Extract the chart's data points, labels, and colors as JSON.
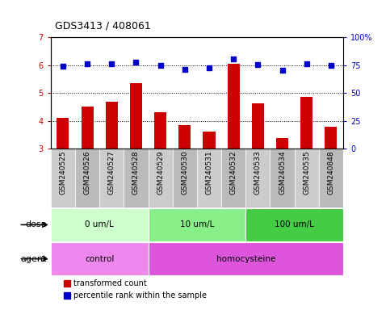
{
  "title": "GDS3413 / 408061",
  "samples": [
    "GSM240525",
    "GSM240526",
    "GSM240527",
    "GSM240528",
    "GSM240529",
    "GSM240530",
    "GSM240531",
    "GSM240532",
    "GSM240533",
    "GSM240534",
    "GSM240535",
    "GSM240848"
  ],
  "transformed_count": [
    4.12,
    4.52,
    4.7,
    5.35,
    4.32,
    3.85,
    3.62,
    6.05,
    4.62,
    3.38,
    4.87,
    3.78
  ],
  "percentile_rank": [
    74.0,
    76.5,
    76.5,
    77.5,
    75.0,
    71.0,
    72.5,
    80.5,
    75.5,
    70.5,
    76.5,
    74.5
  ],
  "ylim_left": [
    3,
    7
  ],
  "ylim_right": [
    0,
    100
  ],
  "yticks_left": [
    3,
    4,
    5,
    6,
    7
  ],
  "yticks_right": [
    0,
    25,
    50,
    75,
    100
  ],
  "ytick_labels_right": [
    "0",
    "25",
    "50",
    "75",
    "100%"
  ],
  "bar_color": "#cc0000",
  "dot_color": "#0000cc",
  "dose_groups": [
    {
      "label": "0 um/L",
      "start": 0,
      "end": 4,
      "color": "#ccffcc"
    },
    {
      "label": "10 um/L",
      "start": 4,
      "end": 8,
      "color": "#88ee88"
    },
    {
      "label": "100 um/L",
      "start": 8,
      "end": 12,
      "color": "#44cc44"
    }
  ],
  "agent_groups": [
    {
      "label": "control",
      "start": 0,
      "end": 4,
      "color": "#ee88ee"
    },
    {
      "label": "homocysteine",
      "start": 4,
      "end": 12,
      "color": "#dd55dd"
    }
  ],
  "dose_label": "dose",
  "agent_label": "agent",
  "legend_bar_label": "transformed count",
  "legend_dot_label": "percentile rank within the sample",
  "bg_color": "#ffffff",
  "plot_bg": "#ffffff",
  "sample_col_colors": [
    "#cccccc",
    "#bbbbbb",
    "#cccccc",
    "#bbbbbb",
    "#cccccc",
    "#bbbbbb",
    "#cccccc",
    "#bbbbbb",
    "#cccccc",
    "#bbbbbb",
    "#cccccc",
    "#bbbbbb"
  ]
}
